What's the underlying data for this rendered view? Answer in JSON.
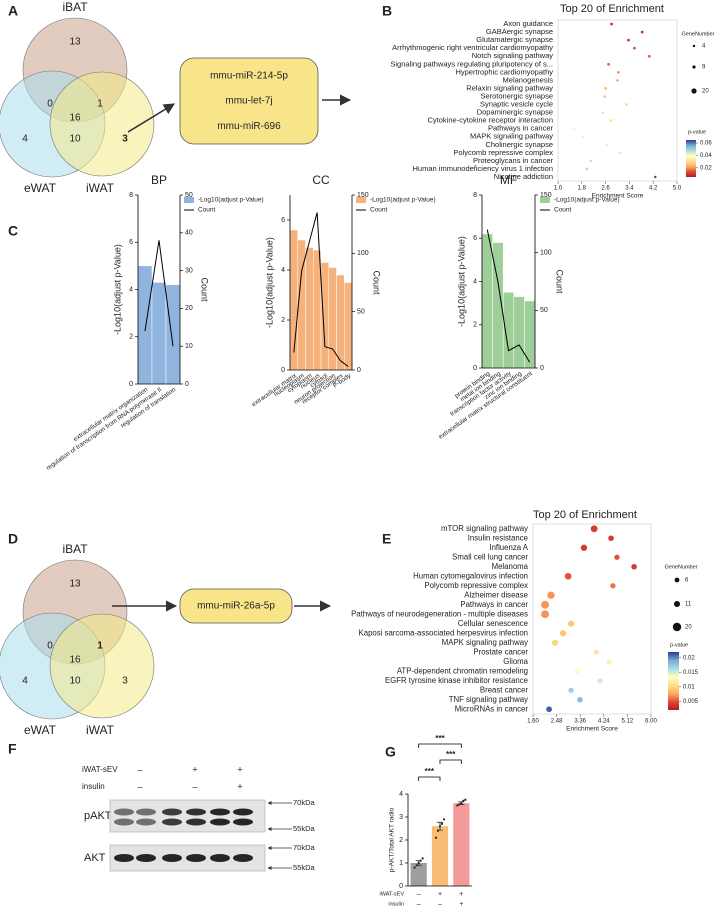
{
  "panels": [
    "A",
    "B",
    "C",
    "D",
    "E",
    "F",
    "G"
  ],
  "venn_a": {
    "sets": [
      "iBAT",
      "eWAT",
      "iWAT"
    ],
    "counts": [
      13,
      0,
      1,
      16,
      4,
      10,
      3
    ],
    "count_colors": [
      "#333333",
      "#333333",
      "#333333",
      "#333333",
      "#333333",
      "#333333",
      "#c00000"
    ],
    "mirnas": [
      "mmu-miR-214-5p",
      "mmu-let-7j",
      "mmu-miR-696"
    ]
  },
  "venn_d": {
    "sets": [
      "iBAT",
      "eWAT",
      "iWAT"
    ],
    "counts": [
      13,
      0,
      1,
      16,
      4,
      10,
      3
    ],
    "count_colors": [
      "#333333",
      "#333333",
      "#c00000",
      "#333333",
      "#333333",
      "#333333",
      "#333333"
    ],
    "mirnas": [
      "mmu-miR-26a-5p"
    ]
  },
  "western_blot": {
    "conditions": [
      {
        "name": "iWAT-sEV",
        "signs": [
          "–",
          "+",
          "+"
        ]
      },
      {
        "name": "insulin",
        "signs": [
          "–",
          "–",
          "+"
        ]
      }
    ],
    "blots": [
      {
        "name": "pAKT",
        "markers": [
          "70kDa",
          "55kDa"
        ]
      },
      {
        "name": "AKT",
        "markers": [
          "70kDa",
          "55kDa"
        ]
      }
    ]
  },
  "chart_data": [
    {
      "type": "dot",
      "title": "Top 20 of Enrichment",
      "xlabel": "Enrichment Score",
      "categories": [
        "Axon guidance",
        "GABAergic synapse",
        "Glutamatergic synapse",
        "Arrhythmogenic right ventricular cardiomyopathy",
        "Notch signaling pathway",
        "Signaling pathways regulating pluripotency of s...",
        "Hypertrophic cardiomyopathy",
        "Melanogenesis",
        "Relaxin signaling pathway",
        "Serotonergic synapse",
        "Synaptic vesicle cycle",
        "Dopaminergic synapse",
        "Cytokine-cytokine receptor interaction",
        "Pathways in cancer",
        "MAPK signaling pathway",
        "Cholinergic synapse",
        "Polycomb repressive complex",
        "Proteoglycans in cancer",
        "Human immunodeficiency virus 1 infection",
        "Nicotine addiction"
      ],
      "values": [
        2.8,
        3.83,
        3.37,
        3.57,
        4.07,
        2.7,
        3.03,
        3.0,
        2.6,
        2.57,
        3.3,
        2.5,
        2.77,
        1.53,
        1.83,
        2.63,
        3.07,
        2.1,
        1.97,
        4.27
      ],
      "p_values": [
        0.006,
        0.008,
        0.009,
        0.011,
        0.013,
        0.016,
        0.02,
        0.021,
        0.024,
        0.025,
        0.028,
        0.029,
        0.031,
        0.04,
        0.042,
        0.043,
        0.044,
        0.046,
        0.048,
        0.064
      ],
      "gene_numbers": [
        5,
        6,
        6,
        5,
        5,
        7,
        6,
        5,
        7,
        5,
        5,
        4,
        7,
        9,
        6,
        5,
        4,
        5,
        5,
        4
      ],
      "xlim": [
        1.0,
        5.0
      ],
      "xticks": [
        {
          "value": 1.0,
          "label": "1.0"
        },
        1.8,
        2.6,
        3.4,
        4.2,
        {
          "value": 5.0,
          "label": "5.0"
        }
      ],
      "size_legend": {
        "title": "GeneNumber",
        "values": [
          4,
          9,
          20
        ]
      },
      "color_legend": {
        "title": "p-value",
        "lim": [
          0.005,
          0.065
        ],
        "ticks": [
          0.06,
          0.04,
          0.02
        ],
        "colors": [
          "#b2182b",
          "#e34a33",
          "#fdae61",
          "#fee090",
          "#ffffbf",
          "#abd9e9",
          "#74add1",
          "#313695"
        ]
      }
    },
    {
      "type": "combo",
      "title": "BP",
      "ylabel": "-Log10(adjust p-Value)",
      "y2label": "Count",
      "categories": [
        "extracellular matrix organization",
        "regulation of transcription from RNA polymerase II",
        "regulation of translation"
      ],
      "series": [
        {
          "name": "-Log10(adjust p-Value)",
          "color": "#8fb4de",
          "values": [
            5.0,
            4.3,
            4.2
          ]
        },
        {
          "name": "Count",
          "color": "#000000",
          "values": [
            14,
            38,
            10
          ],
          "axis": "y2"
        }
      ],
      "ylim": [
        0,
        8
      ],
      "yticks": [
        0,
        2,
        4,
        6,
        8
      ],
      "y2lim": [
        0,
        50
      ],
      "y2ticks": [
        0,
        10,
        20,
        30,
        40,
        50
      ]
    },
    {
      "type": "combo",
      "title": "CC",
      "ylabel": "-Log10(adjust p-Value)",
      "y2label": "Count",
      "categories": [
        "extracellular matrix",
        "nucleoplasm",
        "cytoplasm",
        "nucleus",
        "cytosol",
        "neuron projection",
        "receptor complex",
        "P-body"
      ],
      "series": [
        {
          "name": "-Log10(adjust p-Value)",
          "color": "#f6b27c",
          "values": [
            5.6,
            5.2,
            4.9,
            4.8,
            4.3,
            4.1,
            3.8,
            3.5
          ]
        },
        {
          "name": "Count",
          "color": "#000000",
          "values": [
            15,
            85,
            110,
            135,
            20,
            18,
            8,
            3
          ],
          "axis": "y2"
        }
      ],
      "ylim": [
        0,
        7
      ],
      "yticks": [
        0,
        2,
        4,
        6
      ],
      "y2lim": [
        0,
        150
      ],
      "y2ticks": [
        0,
        50,
        100,
        150
      ]
    },
    {
      "type": "combo",
      "title": "MF",
      "ylabel": "-Log10(adjust p-Value)",
      "y2label": "Count",
      "categories": [
        "protein binding",
        "metal ion binding",
        "transcription factor activity",
        "zinc ion binding",
        "extracellular matrix structural constituent"
      ],
      "series": [
        {
          "name": "-Log10(adjust p-Value)",
          "color": "#9fcf98",
          "values": [
            6.2,
            5.8,
            3.5,
            3.3,
            3.1
          ]
        },
        {
          "name": "Count",
          "color": "#000000",
          "values": [
            120,
            75,
            15,
            20,
            5
          ],
          "axis": "y2"
        }
      ],
      "ylim": [
        0,
        8
      ],
      "yticks": [
        0,
        2,
        4,
        6,
        8
      ],
      "y2lim": [
        0,
        150
      ],
      "y2ticks": [
        0,
        50,
        100,
        150
      ]
    },
    {
      "type": "dot",
      "title": "Top 20 of Enrichment",
      "xlabel": "Enrichment Score",
      "categories": [
        "mTOR signaling pathway",
        "Insulin resistance",
        "Influenza A",
        "Small cell lung cancer",
        "Melanoma",
        "Human cytomegalovirus infection",
        "Polycomb repressive complex",
        "Alzheimer disease",
        "Pathways in cancer",
        "Pathways of neurodegeneration - multiple diseases",
        "Cellular senescence",
        "Kaposi sarcoma-associated herpesvirus infection",
        "MAPK signaling pathway",
        "Prostate cancer",
        "Glioma",
        "ATP-dependent chromatin remodeling",
        "EGFR tyrosine kinase inhibitor resistance",
        "Breast cancer",
        "TNF signaling pathway",
        "MicroRNAs in cancer"
      ],
      "values": [
        3.88,
        4.51,
        3.5,
        4.73,
        5.37,
        2.91,
        4.58,
        2.27,
        2.05,
        2.05,
        3.02,
        2.72,
        2.42,
        3.96,
        4.44,
        3.24,
        4.1,
        3.02,
        3.35,
        2.2
      ],
      "p_values": [
        0.004,
        0.004,
        0.004,
        0.005,
        0.004,
        0.005,
        0.006,
        0.007,
        0.007,
        0.007,
        0.009,
        0.009,
        0.01,
        0.011,
        0.012,
        0.013,
        0.015,
        0.017,
        0.018,
        0.021
      ],
      "gene_numbers": [
        14,
        9,
        12,
        8,
        9,
        13,
        8,
        16,
        18,
        18,
        11,
        12,
        12,
        7,
        7,
        6,
        7,
        8,
        9,
        10
      ],
      "xlim": [
        1.6,
        6.0
      ],
      "xticks": [
        {
          "value": 1.6,
          "label": "1.60"
        },
        2.48,
        3.36,
        4.24,
        5.12,
        {
          "value": 6.0,
          "label": "6.00"
        }
      ],
      "size_legend": {
        "title": "GeneNumber",
        "values": [
          6,
          11,
          20
        ]
      },
      "color_legend": {
        "title": "p-value",
        "lim": [
          0.002,
          0.022
        ],
        "ticks": [
          0.02,
          0.015,
          0.01,
          0.005
        ],
        "colors": [
          "#b2182b",
          "#e34a33",
          "#fdae61",
          "#fee090",
          "#ffffbf",
          "#abd9e9",
          "#74add1",
          "#313695"
        ]
      }
    },
    {
      "type": "bar",
      "ylabel": "p-AKT/Total AKT radio",
      "values": [
        1.0,
        2.6,
        3.6
      ],
      "errors": [
        0.1,
        0.17,
        0.06
      ],
      "points": [
        [
          0.8,
          0.9,
          1.0,
          1.1,
          1.2
        ],
        [
          2.1,
          2.4,
          2.6,
          2.7,
          2.9
        ],
        [
          3.5,
          3.55,
          3.6,
          3.7,
          3.75
        ]
      ],
      "colors": [
        "#9e9e9e",
        "#f9bd75",
        "#f39a9a"
      ],
      "ylim": [
        0,
        4
      ],
      "yticks": [
        0,
        1,
        2,
        3,
        4
      ],
      "significance": [
        "***",
        "***",
        "***"
      ],
      "conditions": [
        {
          "name": "iWAT-sEV",
          "signs": [
            "–",
            "+",
            "+"
          ]
        },
        {
          "name": "insulin",
          "signs": [
            "–",
            "–",
            "+"
          ]
        }
      ]
    }
  ]
}
